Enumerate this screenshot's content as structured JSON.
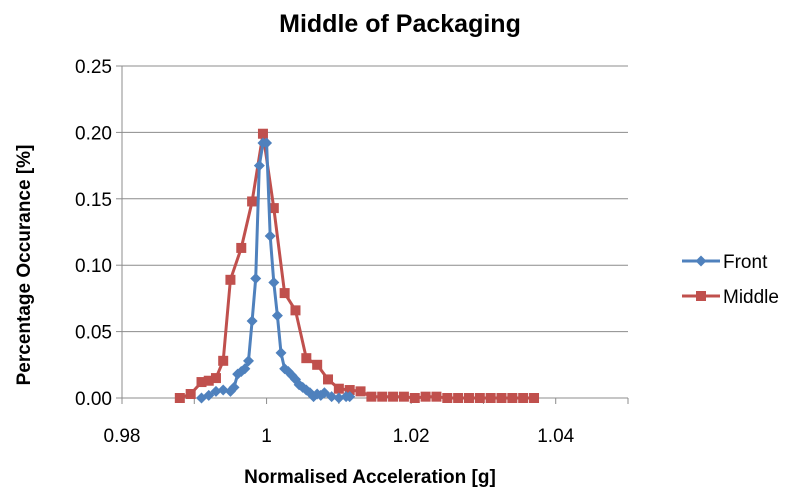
{
  "chart_data": {
    "type": "line",
    "title": "Middle of Packaging",
    "xlabel": "Normalised Acceleration [g]",
    "ylabel": "Percentage Occurance [%]",
    "xlim": [
      0.98,
      1.05
    ],
    "ylim": [
      0,
      0.25
    ],
    "xticks": [
      0.98,
      1,
      1.02,
      1.04
    ],
    "xtick_labels": [
      "0.98",
      "1",
      "1.02",
      "1.04"
    ],
    "yticks": [
      0,
      0.05,
      0.1,
      0.15,
      0.2,
      0.25
    ],
    "ytick_labels": [
      "0.00",
      "0.05",
      "0.10",
      "0.15",
      "0.20",
      "0.25"
    ],
    "grid": "horizontal",
    "legend_position": "right",
    "series": [
      {
        "name": "Front",
        "color": "#4F81BD",
        "marker": "diamond",
        "x": [
          0.991,
          0.992,
          0.993,
          0.994,
          0.995,
          0.9955,
          0.996,
          0.9965,
          0.997,
          0.9975,
          0.998,
          0.9985,
          0.999,
          0.9995,
          1.0,
          1.0005,
          1.001,
          1.0015,
          1.002,
          1.0025,
          1.003,
          1.0035,
          1.004,
          1.0045,
          1.005,
          1.0055,
          1.006,
          1.0065,
          1.007,
          1.0075,
          1.008,
          1.009,
          1.01,
          1.011,
          1.0115
        ],
        "y": [
          0.0,
          0.002,
          0.005,
          0.006,
          0.005,
          0.008,
          0.018,
          0.02,
          0.022,
          0.028,
          0.058,
          0.09,
          0.175,
          0.192,
          0.192,
          0.122,
          0.087,
          0.062,
          0.034,
          0.022,
          0.02,
          0.017,
          0.014,
          0.01,
          0.008,
          0.006,
          0.004,
          0.001,
          0.003,
          0.002,
          0.004,
          0.001,
          0.0,
          0.001,
          0.001
        ]
      },
      {
        "name": "Middle",
        "color": "#C0504D",
        "marker": "square",
        "x": [
          0.988,
          0.9895,
          0.991,
          0.992,
          0.993,
          0.994,
          0.995,
          0.9965,
          0.998,
          0.9995,
          1.001,
          1.0025,
          1.004,
          1.0055,
          1.007,
          1.0085,
          1.01,
          1.0115,
          1.013,
          1.0145,
          1.016,
          1.0175,
          1.019,
          1.0205,
          1.022,
          1.0235,
          1.025,
          1.0265,
          1.028,
          1.0295,
          1.031,
          1.0325,
          1.034,
          1.0355,
          1.037
        ],
        "y": [
          0.0,
          0.003,
          0.012,
          0.013,
          0.015,
          0.028,
          0.089,
          0.113,
          0.148,
          0.199,
          0.143,
          0.079,
          0.066,
          0.03,
          0.025,
          0.014,
          0.007,
          0.006,
          0.005,
          0.001,
          0.001,
          0.001,
          0.001,
          0.0,
          0.001,
          0.001,
          0.0,
          0.0,
          0.0,
          0.0,
          0.0,
          0.0,
          0.0,
          0.0,
          0.0
        ]
      }
    ]
  }
}
